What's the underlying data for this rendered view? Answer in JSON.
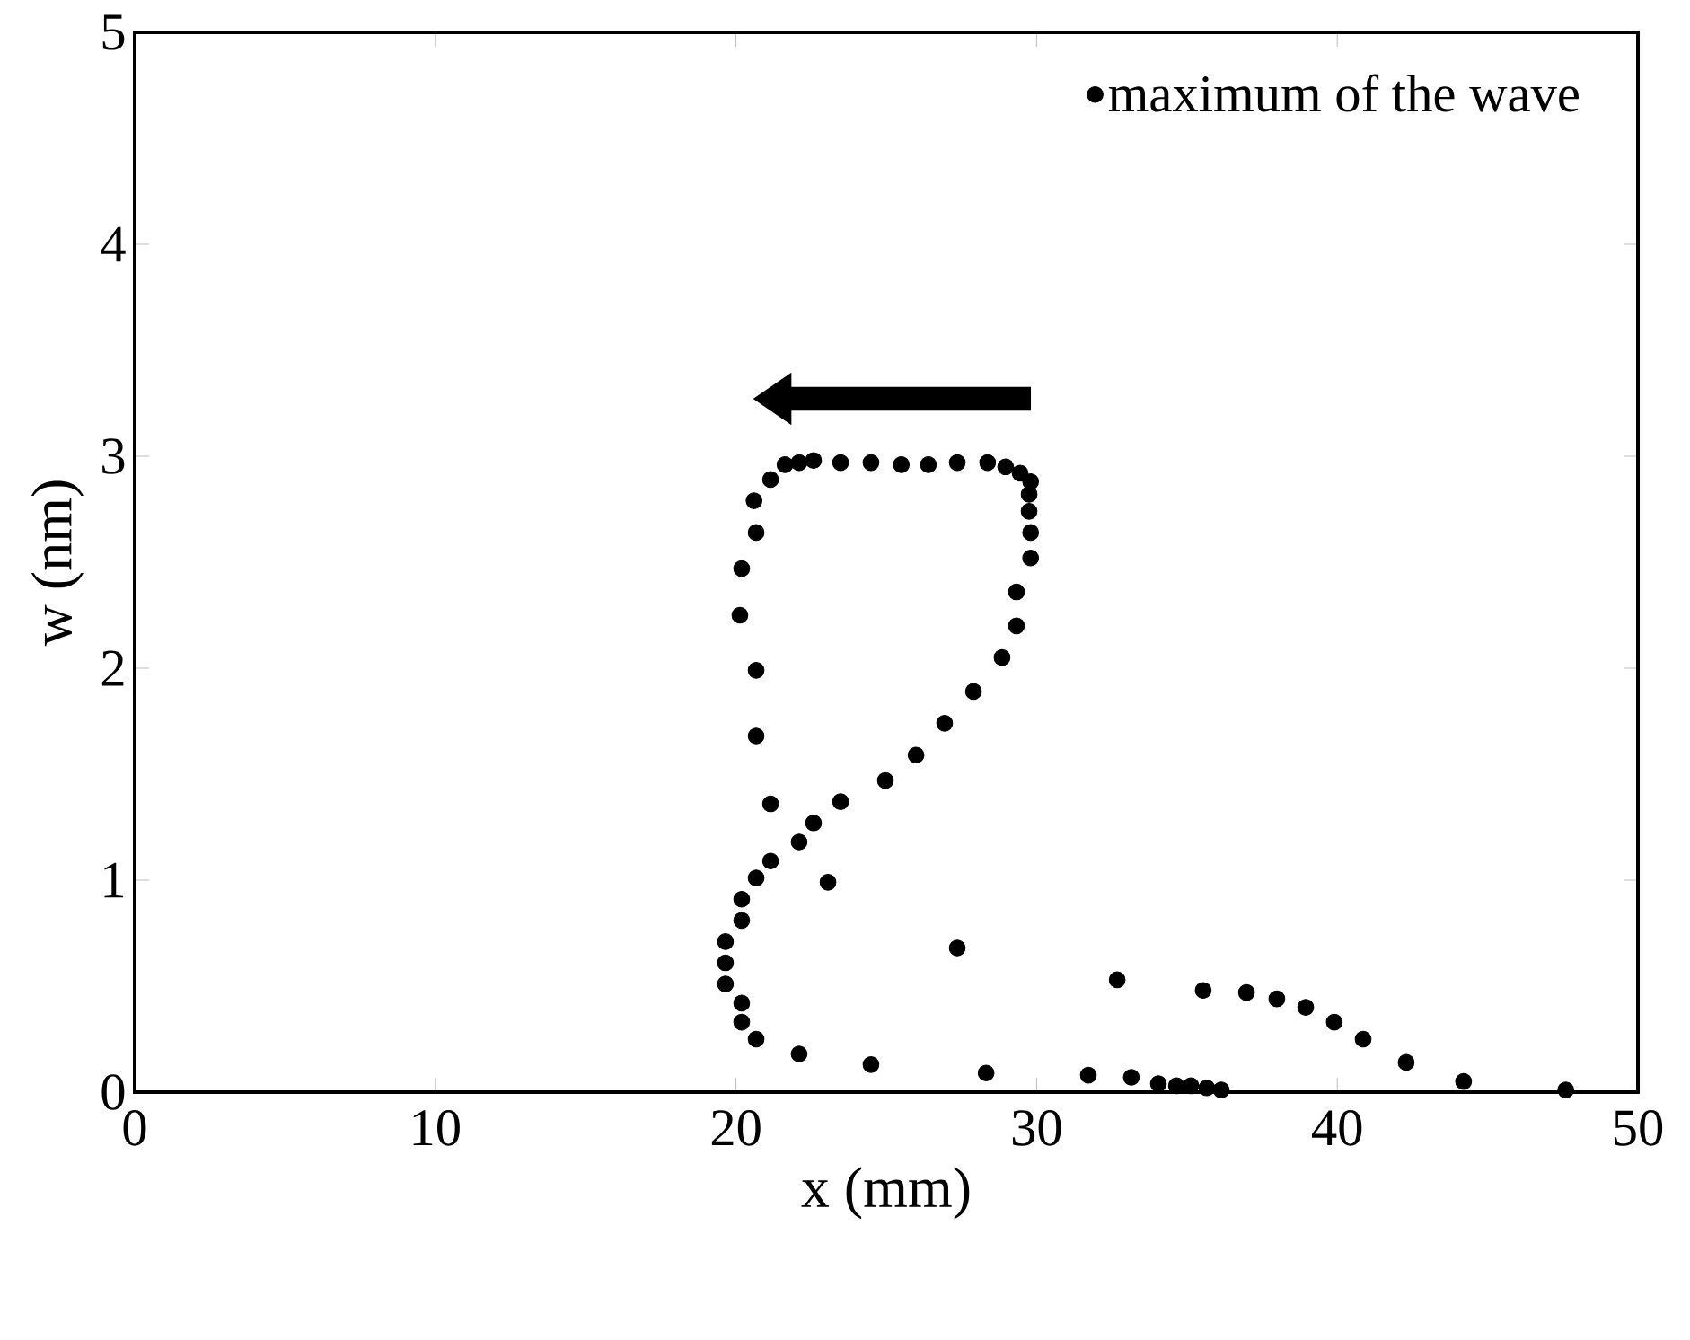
{
  "chart_data": {
    "type": "scatter",
    "xlabel": "x (mm)",
    "ylabel": "w (nm)",
    "xlim": [
      0,
      50
    ],
    "ylim": [
      0,
      5
    ],
    "xticks": [
      0,
      10,
      20,
      30,
      40,
      50
    ],
    "yticks": [
      0,
      1,
      2,
      3,
      4,
      5
    ],
    "legend": "top right",
    "grid": false,
    "series": [
      {
        "name": "maximum of the wave",
        "color": "#000000",
        "x": [
          20.6,
          20.67,
          20.19,
          20.13,
          20.67,
          20.67,
          21.15,
          21.63,
          22.1,
          22.58,
          23.48,
          24.49,
          25.5,
          26.4,
          27.36,
          28.37,
          28.97,
          29.45,
          29.8,
          29.75,
          29.75,
          29.8,
          29.8,
          29.33,
          29.33,
          28.85,
          27.9,
          26.94,
          25.99,
          24.97,
          23.48,
          21.15,
          22.58,
          22.1,
          21.15,
          20.67,
          20.19,
          20.19,
          19.65,
          19.65,
          19.65,
          20.19,
          20.19,
          20.67,
          22.1,
          24.49,
          28.32,
          31.72,
          33.15,
          34.05,
          34.65,
          35.13,
          35.66,
          36.14,
          23.06,
          27.36,
          32.68,
          35.54,
          36.98,
          37.99,
          38.95,
          39.9,
          40.86,
          42.29,
          44.2,
          47.6
        ],
        "values": [
          2.79,
          2.64,
          2.47,
          2.25,
          1.99,
          1.68,
          2.89,
          2.96,
          2.97,
          2.98,
          2.97,
          2.97,
          2.96,
          2.96,
          2.97,
          2.97,
          2.95,
          2.92,
          2.88,
          2.82,
          2.74,
          2.64,
          2.52,
          2.36,
          2.2,
          2.05,
          1.89,
          1.74,
          1.59,
          1.47,
          1.37,
          1.36,
          1.27,
          1.18,
          1.09,
          1.01,
          0.91,
          0.81,
          0.71,
          0.61,
          0.51,
          0.42,
          0.33,
          0.25,
          0.18,
          0.13,
          0.09,
          0.08,
          0.07,
          0.04,
          0.03,
          0.03,
          0.02,
          0.01,
          0.99,
          0.68,
          0.53,
          0.48,
          0.47,
          0.44,
          0.4,
          0.33,
          0.25,
          0.14,
          0.05,
          0.01
        ]
      }
    ]
  }
}
